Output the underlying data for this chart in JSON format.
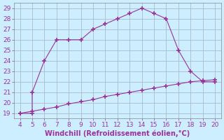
{
  "x_main": [
    4,
    5,
    5,
    6,
    7,
    8,
    9,
    10,
    11,
    12,
    13,
    14,
    15,
    16,
    17,
    18,
    19,
    20
  ],
  "y_main": [
    19,
    19,
    21,
    24,
    26,
    26,
    26,
    27,
    27.5,
    28,
    28.5,
    29,
    28.5,
    28,
    25,
    23,
    22,
    22
  ],
  "x_line2": [
    4,
    5,
    6,
    7,
    8,
    9,
    10,
    11,
    12,
    13,
    14,
    15,
    16,
    17,
    18,
    19,
    20
  ],
  "y_line2": [
    19,
    19.2,
    19.4,
    19.6,
    19.9,
    20.1,
    20.3,
    20.6,
    20.8,
    21.0,
    21.2,
    21.4,
    21.6,
    21.8,
    22.0,
    22.1,
    22.2
  ],
  "line_color": "#993399",
  "marker": "+",
  "marker_size": 4,
  "marker_lw": 1.2,
  "bg_color": "#cceeff",
  "grid_color": "#aabbcc",
  "xlabel": "Windchill (Refroidissement éolien,°C)",
  "xlim": [
    3.5,
    20.5
  ],
  "ylim": [
    18.5,
    29.5
  ],
  "xticks": [
    4,
    5,
    6,
    7,
    8,
    9,
    10,
    11,
    12,
    13,
    14,
    15,
    16,
    17,
    18,
    19,
    20
  ],
  "yticks": [
    19,
    20,
    21,
    22,
    23,
    24,
    25,
    26,
    27,
    28,
    29
  ],
  "xlabel_color": "#993399",
  "xlabel_fontsize": 7,
  "tick_fontsize": 6.5
}
